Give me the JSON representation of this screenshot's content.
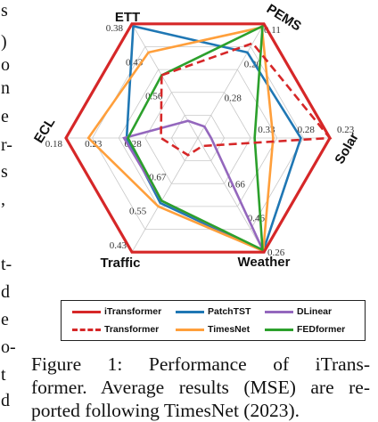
{
  "left_text_fragments": [
    "s",
    ")",
    "o",
    "n",
    "e",
    "r-",
    "s",
    ",",
    "t-",
    "d",
    "e",
    "o-",
    "t",
    "d"
  ],
  "chart_data": {
    "type": "radar",
    "axes": [
      "ETT",
      "PEMS",
      "Solar",
      "Weather",
      "Traffic",
      "ECL"
    ],
    "tick_labels": {
      "ETT": [
        "0.38",
        "0.43",
        "0.56"
      ],
      "PEMS": [
        "0.11",
        "0.20",
        "0.28"
      ],
      "Solar": [
        "0.23",
        "0.28",
        "0.33"
      ],
      "Weather": [
        "0.26",
        "0.46",
        "0.66"
      ],
      "Traffic": [
        "0.43",
        "0.55",
        "0.67"
      ],
      "ECL": [
        "0.18",
        "0.23",
        "0.28"
      ]
    },
    "series": [
      {
        "name": "iTransformer",
        "color": "#d62728",
        "dash": "solid",
        "values": [
          1.0,
          1.0,
          1.0,
          1.0,
          1.0,
          1.0
        ]
      },
      {
        "name": "PatchTST",
        "color": "#1f77b4",
        "dash": "solid",
        "values": [
          0.98,
          0.75,
          0.78,
          0.99,
          0.57,
          0.54
        ]
      },
      {
        "name": "DLinear",
        "color": "#9467bd",
        "dash": "solid",
        "values": [
          0.15,
          0.1,
          0.1,
          0.99,
          0.55,
          0.56
        ]
      },
      {
        "name": "Transformer",
        "color": "#d62728",
        "dash": "dashed",
        "values": [
          0.55,
          0.83,
          1.0,
          0.07,
          0.15,
          0.28
        ]
      },
      {
        "name": "TimesNet",
        "color": "#ff9f3b",
        "dash": "solid",
        "values": [
          0.75,
          0.97,
          0.57,
          0.99,
          0.6,
          0.83
        ]
      },
      {
        "name": "FEDformer",
        "color": "#2ca02c",
        "dash": "solid",
        "values": [
          0.55,
          0.98,
          0.43,
          0.98,
          0.55,
          0.53
        ]
      }
    ]
  },
  "legend": {
    "items": [
      {
        "label": "iTransformer",
        "color": "#d62728",
        "dash": "solid"
      },
      {
        "label": "PatchTST",
        "color": "#1f77b4",
        "dash": "solid"
      },
      {
        "label": "DLinear",
        "color": "#9467bd",
        "dash": "solid"
      },
      {
        "label": "Transformer",
        "color": "#d62728",
        "dash": "dashed"
      },
      {
        "label": "TimesNet",
        "color": "#ff9f3b",
        "dash": "solid"
      },
      {
        "label": "FEDformer",
        "color": "#2ca02c",
        "dash": "solid"
      }
    ]
  },
  "caption": {
    "line1": "Figure 1:  Performance of iTrans-",
    "line2": "former. Average results (MSE) are re-",
    "line3": "ported following TimesNet (2023)."
  }
}
